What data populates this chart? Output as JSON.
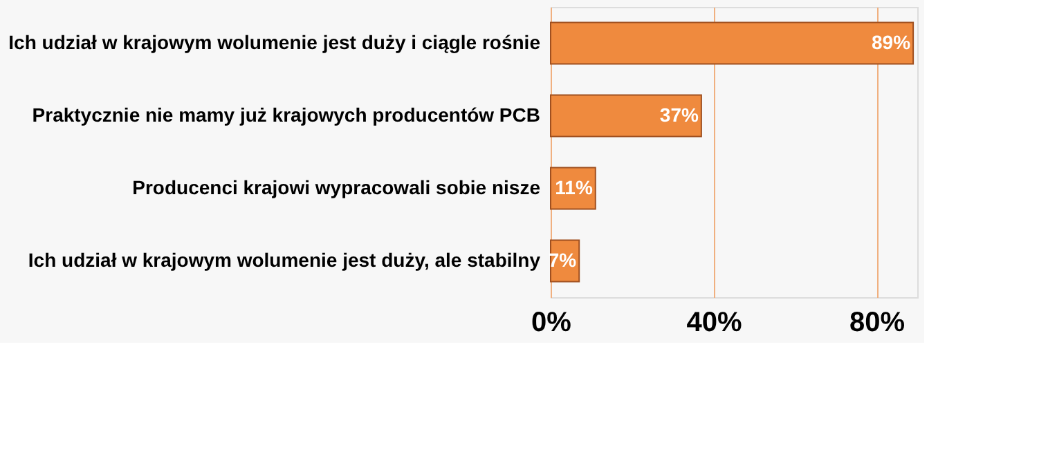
{
  "chart_data": {
    "type": "bar",
    "orientation": "horizontal",
    "categories": [
      "Ich udział w krajowym wolumenie jest duży i ciągle rośnie",
      "Praktycznie nie mamy już krajowych producentów PCB",
      "Producenci krajowi wypracowali sobie nisze",
      "Ich udział w krajowym wolumenie jest duży, ale stabilny"
    ],
    "values": [
      89,
      37,
      11,
      7
    ],
    "value_labels": [
      "89%",
      "37%",
      "11%",
      "7%"
    ],
    "color": "#ef8a3e",
    "xlim": [
      0,
      90
    ],
    "xticks": [
      {
        "value": 0,
        "label": "0%"
      },
      {
        "value": 40,
        "label": "40%"
      },
      {
        "value": 80,
        "label": "80%"
      }
    ],
    "grid": "x"
  }
}
